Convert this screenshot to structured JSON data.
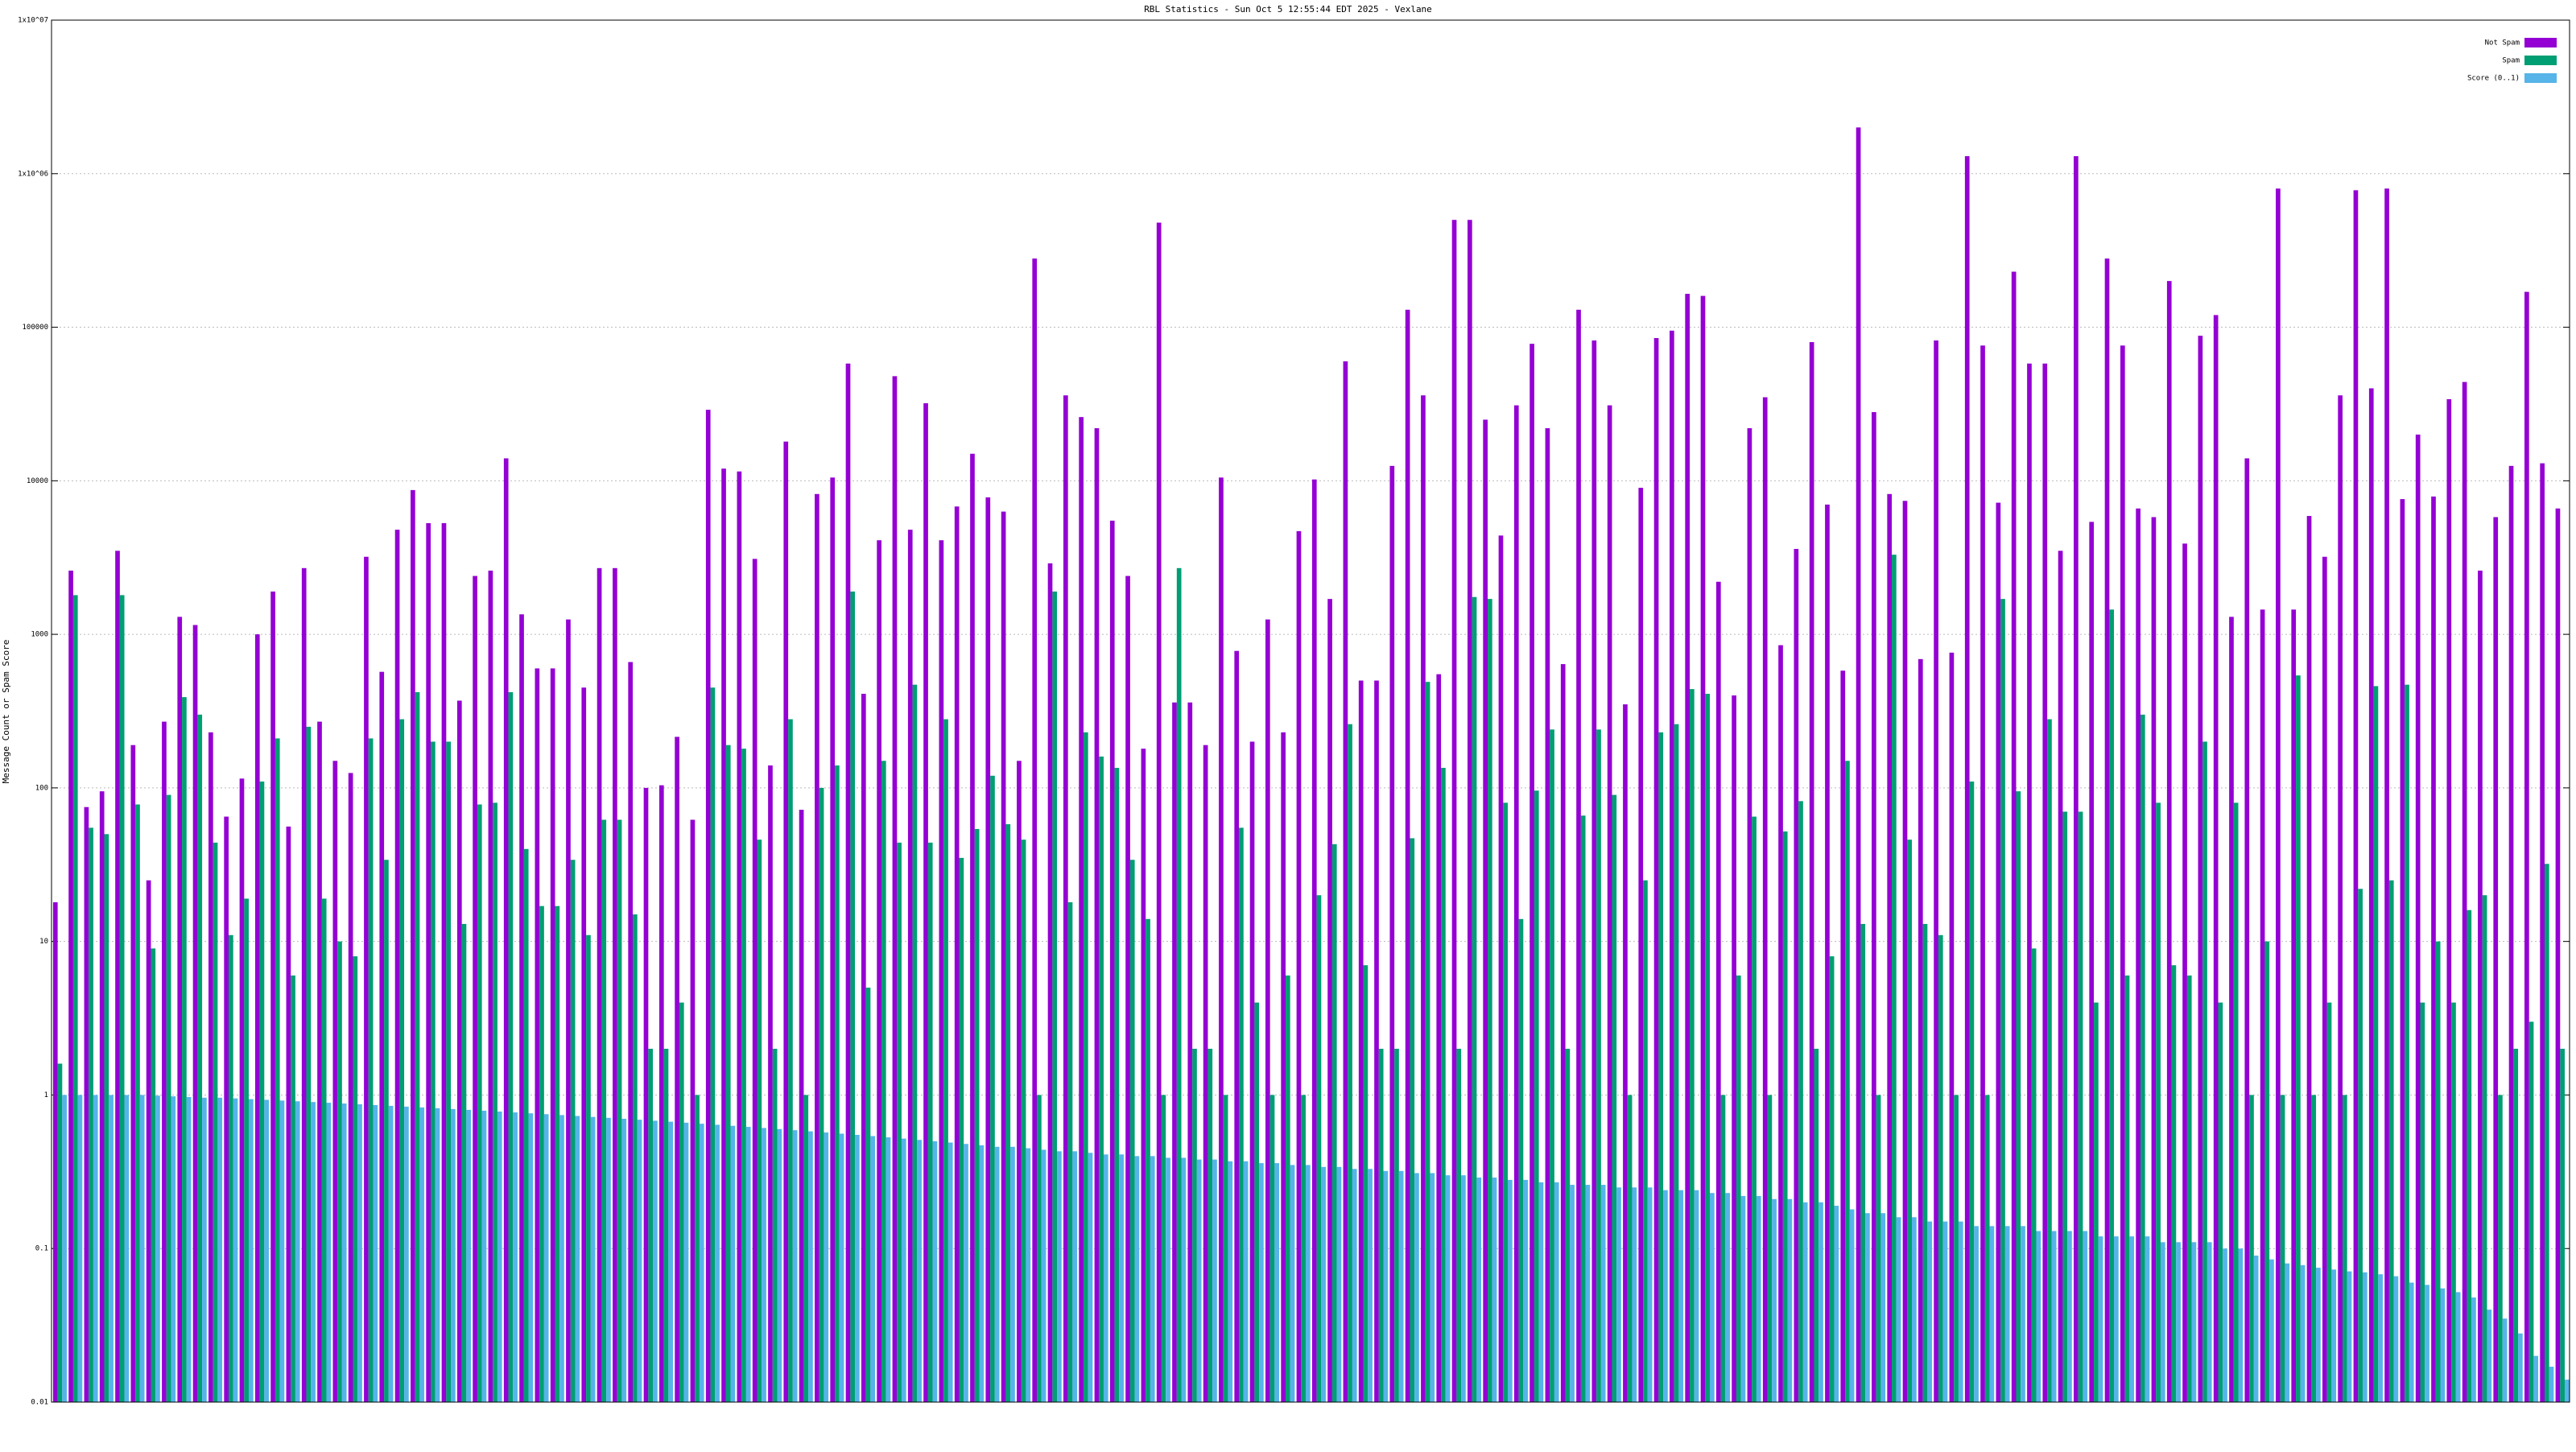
{
  "chart_data": {
    "type": "bar",
    "title": "RBL Statistics - Sun Oct  5 12:55:44 EDT 2025 - Vexlane",
    "y_label": "Message Count or Spam Score",
    "log_scale": true,
    "grid": true,
    "legend": "top-right",
    "ylim": [
      0.01,
      10000000
    ],
    "yticks": [
      0.01,
      0.1,
      1,
      10,
      100,
      1000,
      10000,
      100000,
      {
        "value": 1000000,
        "label": "1x10^06"
      },
      {
        "value": 10000000,
        "label": "1x10^07"
      }
    ],
    "series": [
      {
        "name": "Not Spam",
        "color": "#9400d3",
        "values": [
          18,
          2600,
          75,
          95,
          3500,
          190,
          25,
          270,
          1300,
          1150,
          230,
          65,
          115,
          1000,
          1900,
          56,
          2700,
          270,
          150,
          125,
          3200,
          570,
          4800,
          8700,
          5300,
          5300,
          370,
          2400,
          2600,
          14000,
          1350,
          600,
          600,
          1250,
          450,
          2700,
          2700,
          660,
          100,
          104,
          215,
          62,
          29000,
          12000,
          11500,
          3100,
          140,
          18000,
          72,
          8200,
          10500,
          58000,
          410,
          4100,
          48000,
          4800,
          32000,
          4100,
          6800,
          15000,
          7800,
          6300,
          150,
          280000,
          2900,
          36000,
          26000,
          22000,
          5500,
          2400,
          180,
          480000,
          360,
          360,
          190,
          10500,
          780,
          200,
          1250,
          230,
          4700,
          10200,
          1700,
          60000,
          500,
          500,
          12500,
          130000,
          36000,
          550,
          500000,
          500000,
          25000,
          4400,
          31000,
          78000,
          22000,
          640,
          130000,
          82000,
          31000,
          350,
          9000,
          85000,
          95000,
          165000,
          160000,
          2200,
          400,
          22000,
          35000,
          850,
          3600,
          80000,
          7000,
          580,
          2000000,
          28000,
          8200,
          7400,
          690,
          82000,
          760,
          1300000,
          76000,
          7200,
          230000,
          58000,
          58000,
          3500,
          1300000,
          5400,
          280000,
          76000,
          6600,
          5800,
          200000,
          3900,
          88000,
          120000,
          1300,
          14000,
          1450,
          800000,
          1450,
          5900,
          3200,
          36000,
          780000,
          40000,
          800000,
          7600,
          20000,
          7900,
          34000,
          44000,
          2600,
          5800,
          12500,
          170000,
          13000,
          6600
        ]
      },
      {
        "name": "Spam",
        "color": "#009e73",
        "values": [
          1.6,
          1800,
          55,
          50,
          1800,
          78,
          9,
          90,
          390,
          300,
          44,
          11,
          19,
          110,
          210,
          6,
          250,
          19,
          10,
          8,
          210,
          34,
          280,
          420,
          200,
          200,
          13,
          78,
          80,
          420,
          40,
          17,
          17,
          34,
          11,
          62,
          62,
          15,
          2,
          2,
          4,
          1,
          450,
          190,
          180,
          46,
          2,
          280,
          1,
          100,
          140,
          1900,
          5,
          150,
          44,
          470,
          44,
          280,
          35,
          54,
          120,
          58,
          46,
          1,
          1900,
          18,
          230,
          160,
          135,
          34,
          14,
          1,
          2700,
          2,
          2,
          1,
          55,
          4,
          1,
          6,
          1,
          20,
          43,
          260,
          7,
          2,
          2,
          47,
          490,
          135,
          2,
          1750,
          1700,
          80,
          14,
          96,
          240,
          2,
          66,
          240,
          90,
          1,
          25,
          230,
          260,
          440,
          410,
          1,
          6,
          65,
          1,
          52,
          82,
          2,
          8,
          150,
          13,
          1,
          3300,
          46,
          13,
          11,
          1,
          110,
          1,
          1700,
          95,
          9,
          280,
          70,
          70,
          4,
          1450,
          6,
          300,
          80,
          7,
          6,
          200,
          4,
          80,
          1,
          10,
          1,
          540,
          1,
          4,
          1,
          22,
          460,
          25,
          470,
          4,
          10,
          4,
          16,
          20,
          1,
          2,
          3,
          32,
          2
        ]
      },
      {
        "name": "Score (0..1)",
        "color": "#56b4e9",
        "values": [
          1,
          1,
          1,
          1,
          1,
          1,
          0.99,
          0.98,
          0.97,
          0.96,
          0.96,
          0.95,
          0.94,
          0.93,
          0.92,
          0.91,
          0.9,
          0.89,
          0.88,
          0.87,
          0.86,
          0.85,
          0.84,
          0.83,
          0.82,
          0.81,
          0.8,
          0.79,
          0.78,
          0.77,
          0.76,
          0.75,
          0.74,
          0.73,
          0.72,
          0.71,
          0.7,
          0.69,
          0.68,
          0.67,
          0.66,
          0.65,
          0.64,
          0.63,
          0.62,
          0.61,
          0.6,
          0.59,
          0.58,
          0.57,
          0.56,
          0.55,
          0.54,
          0.53,
          0.52,
          0.51,
          0.5,
          0.49,
          0.48,
          0.47,
          0.46,
          0.46,
          0.45,
          0.44,
          0.43,
          0.43,
          0.42,
          0.41,
          0.41,
          0.4,
          0.4,
          0.39,
          0.39,
          0.38,
          0.38,
          0.37,
          0.37,
          0.36,
          0.36,
          0.35,
          0.35,
          0.34,
          0.34,
          0.33,
          0.33,
          0.32,
          0.32,
          0.31,
          0.31,
          0.3,
          0.3,
          0.29,
          0.29,
          0.28,
          0.28,
          0.27,
          0.27,
          0.26,
          0.26,
          0.26,
          0.25,
          0.25,
          0.25,
          0.24,
          0.24,
          0.24,
          0.23,
          0.23,
          0.22,
          0.22,
          0.21,
          0.21,
          0.2,
          0.2,
          0.19,
          0.18,
          0.17,
          0.17,
          0.16,
          0.16,
          0.15,
          0.15,
          0.15,
          0.14,
          0.14,
          0.14,
          0.14,
          0.13,
          0.13,
          0.13,
          0.13,
          0.12,
          0.12,
          0.12,
          0.12,
          0.11,
          0.11,
          0.11,
          0.11,
          0.1,
          0.1,
          0.09,
          0.085,
          0.08,
          0.078,
          0.075,
          0.073,
          0.071,
          0.07,
          0.068,
          0.066,
          0.06,
          0.058,
          0.055,
          0.052,
          0.048,
          0.04,
          0.035,
          0.028,
          0.02,
          0.017,
          0.014
        ]
      }
    ]
  }
}
